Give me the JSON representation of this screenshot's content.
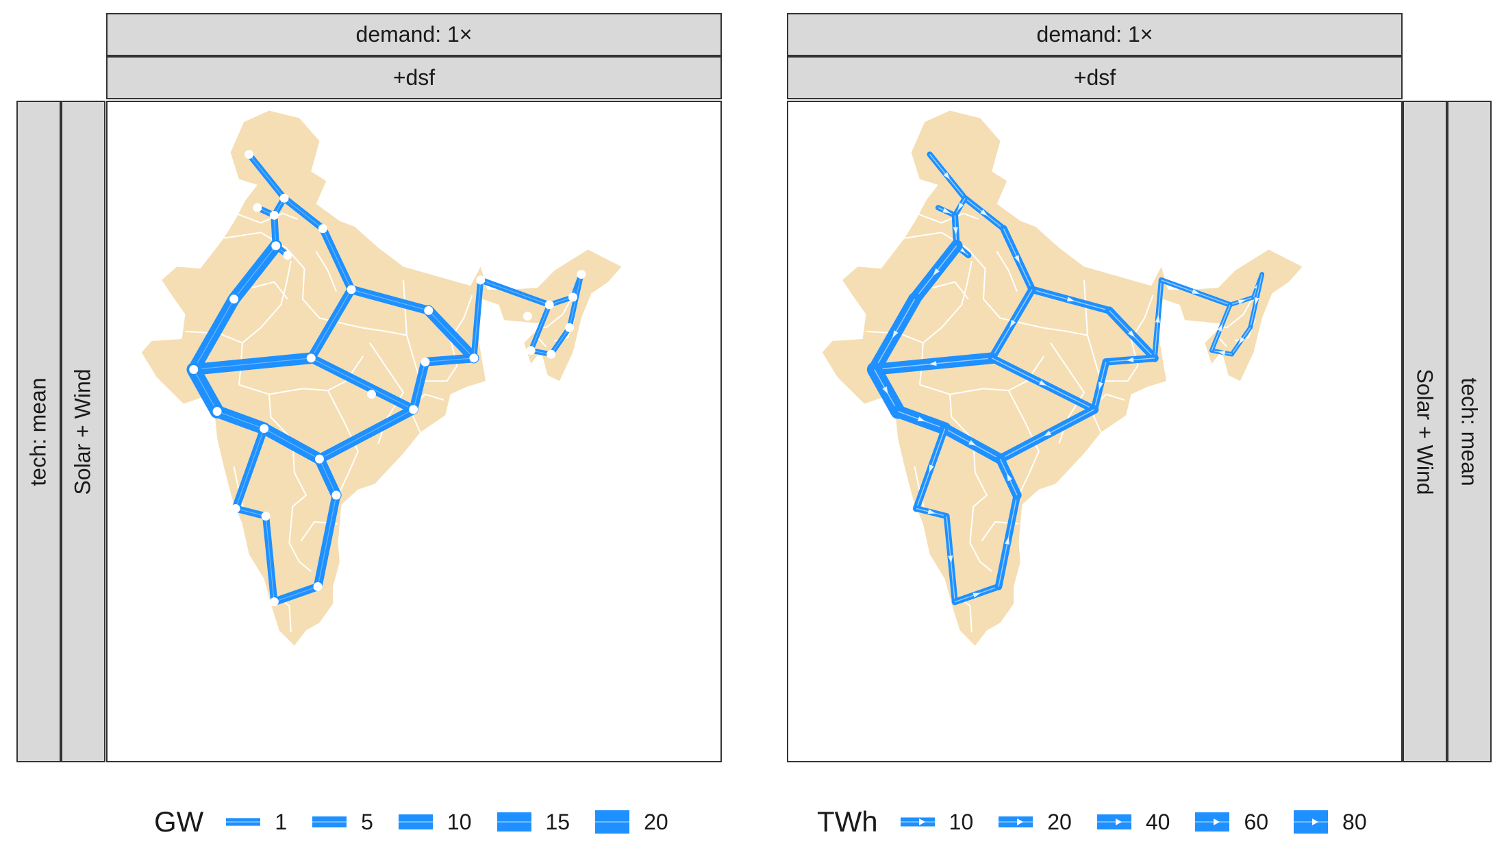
{
  "panels": [
    {
      "id": "left",
      "demand_strip": "demand: 1×",
      "dsf_strip": "+dsf",
      "tech_strip": "tech: mean",
      "scenario_strip": "Solar + Wind",
      "mode": "capacity"
    },
    {
      "id": "right",
      "demand_strip": "demand: 1×",
      "dsf_strip": "+dsf",
      "tech_strip": "tech: mean",
      "scenario_strip": "Solar + Wind",
      "mode": "flow"
    }
  ],
  "legend_capacity": {
    "title": "GW",
    "items": [
      "1",
      "5",
      "10",
      "15",
      "20"
    ],
    "values": [
      1,
      5,
      10,
      15,
      20
    ]
  },
  "legend_flow": {
    "title": "TWh",
    "items": [
      "10",
      "20",
      "40",
      "60",
      "80"
    ],
    "values": [
      10,
      20,
      40,
      60,
      80
    ]
  },
  "colors": {
    "land": "#f5deb3",
    "line": "#1e90ff",
    "strip": "#d9d9d9",
    "border": "#333333",
    "node": "#ffffff"
  },
  "network": {
    "nodes": [
      {
        "id": "J&K",
        "lon": 74.8,
        "lat": 33.9
      },
      {
        "id": "HP",
        "lon": 76.9,
        "lat": 31.6
      },
      {
        "id": "PB",
        "lon": 75.3,
        "lat": 31.1
      },
      {
        "id": "PB2",
        "lon": 76.3,
        "lat": 30.7
      },
      {
        "id": "UK",
        "lon": 79.2,
        "lat": 30.0
      },
      {
        "id": "HR",
        "lon": 76.4,
        "lat": 29.1
      },
      {
        "id": "DL",
        "lon": 77.1,
        "lat": 28.6
      },
      {
        "id": "RJ",
        "lon": 73.9,
        "lat": 26.3
      },
      {
        "id": "UP",
        "lon": 80.9,
        "lat": 26.8
      },
      {
        "id": "BR",
        "lon": 85.5,
        "lat": 25.7
      },
      {
        "id": "WB",
        "lon": 88.2,
        "lat": 23.2
      },
      {
        "id": "JH",
        "lon": 85.3,
        "lat": 23.0
      },
      {
        "id": "SK",
        "lon": 88.6,
        "lat": 27.3
      },
      {
        "id": "AS",
        "lon": 92.7,
        "lat": 26.0
      },
      {
        "id": "AR",
        "lon": 94.6,
        "lat": 27.6
      },
      {
        "id": "NL",
        "lon": 94.1,
        "lat": 26.4
      },
      {
        "id": "MN",
        "lon": 93.9,
        "lat": 24.8
      },
      {
        "id": "MZ",
        "lon": 92.8,
        "lat": 23.4
      },
      {
        "id": "TR",
        "lon": 91.6,
        "lat": 23.6
      },
      {
        "id": "ML",
        "lon": 91.4,
        "lat": 25.4
      },
      {
        "id": "GJ",
        "lon": 71.5,
        "lat": 22.6
      },
      {
        "id": "MP",
        "lon": 78.5,
        "lat": 23.2
      },
      {
        "id": "CG",
        "lon": 82.1,
        "lat": 21.3
      },
      {
        "id": "OD",
        "lon": 84.6,
        "lat": 20.5
      },
      {
        "id": "MH",
        "lon": 75.7,
        "lat": 19.5
      },
      {
        "id": "DD",
        "lon": 72.9,
        "lat": 20.4
      },
      {
        "id": "TG",
        "lon": 79.0,
        "lat": 17.9
      },
      {
        "id": "AP",
        "lon": 80.0,
        "lat": 16.0
      },
      {
        "id": "GA",
        "lon": 74.0,
        "lat": 15.3
      },
      {
        "id": "KA",
        "lon": 75.8,
        "lat": 14.9
      },
      {
        "id": "TN",
        "lon": 78.9,
        "lat": 11.2
      },
      {
        "id": "KL",
        "lon": 76.3,
        "lat": 10.4
      }
    ],
    "edges": [
      {
        "from": "J&K",
        "to": "HP",
        "gw": 3,
        "twh": 12
      },
      {
        "from": "HP",
        "to": "UK",
        "gw": 4,
        "twh": 14
      },
      {
        "from": "HP",
        "to": "PB2",
        "gw": 3,
        "twh": 10
      },
      {
        "from": "PB",
        "to": "PB2",
        "gw": 3,
        "twh": 10
      },
      {
        "from": "PB2",
        "to": "HR",
        "gw": 4,
        "twh": 16
      },
      {
        "from": "HR",
        "to": "DL",
        "gw": 3,
        "twh": 14
      },
      {
        "from": "HR",
        "to": "RJ",
        "gw": 10,
        "twh": 45
      },
      {
        "from": "RJ",
        "to": "GJ",
        "gw": 10,
        "twh": 50
      },
      {
        "from": "UK",
        "to": "UP",
        "gw": 5,
        "twh": 20
      },
      {
        "from": "UP",
        "to": "BR",
        "gw": 6,
        "twh": 20
      },
      {
        "from": "BR",
        "to": "WB",
        "gw": 8,
        "twh": 24
      },
      {
        "from": "UP",
        "to": "MP",
        "gw": 6,
        "twh": 22
      },
      {
        "from": "MP",
        "to": "GJ",
        "gw": 9,
        "twh": 42
      },
      {
        "from": "MP",
        "to": "OD",
        "gw": 6,
        "twh": 22
      },
      {
        "from": "WB",
        "to": "SK",
        "gw": 3,
        "twh": 10
      },
      {
        "from": "SK",
        "to": "AS",
        "gw": 3,
        "twh": 10
      },
      {
        "from": "AS",
        "to": "NL",
        "gw": 2,
        "twh": 5
      },
      {
        "from": "NL",
        "to": "AR",
        "gw": 2,
        "twh": 6
      },
      {
        "from": "AR",
        "to": "MN",
        "gw": 2,
        "twh": 6
      },
      {
        "from": "MN",
        "to": "MZ",
        "gw": 2,
        "twh": 5
      },
      {
        "from": "MZ",
        "to": "TR",
        "gw": 2,
        "twh": 5
      },
      {
        "from": "TR",
        "to": "AS",
        "gw": 2,
        "twh": 5
      },
      {
        "from": "WB",
        "to": "JH",
        "gw": 6,
        "twh": 20
      },
      {
        "from": "JH",
        "to": "OD",
        "gw": 6,
        "twh": 20
      },
      {
        "from": "OD",
        "to": "TG",
        "gw": 7,
        "twh": 28
      },
      {
        "from": "GJ",
        "to": "DD",
        "gw": 12,
        "twh": 60
      },
      {
        "from": "DD",
        "to": "MH",
        "gw": 10,
        "twh": 48
      },
      {
        "from": "MH",
        "to": "TG",
        "gw": 9,
        "twh": 38
      },
      {
        "from": "MH",
        "to": "GA",
        "gw": 5,
        "twh": 18
      },
      {
        "from": "GA",
        "to": "KA",
        "gw": 4,
        "twh": 14
      },
      {
        "from": "KA",
        "to": "KL",
        "gw": 4,
        "twh": 14
      },
      {
        "from": "KL",
        "to": "TN",
        "gw": 5,
        "twh": 16
      },
      {
        "from": "TN",
        "to": "AP",
        "gw": 6,
        "twh": 20
      },
      {
        "from": "AP",
        "to": "TG",
        "gw": 8,
        "twh": 30
      }
    ]
  }
}
